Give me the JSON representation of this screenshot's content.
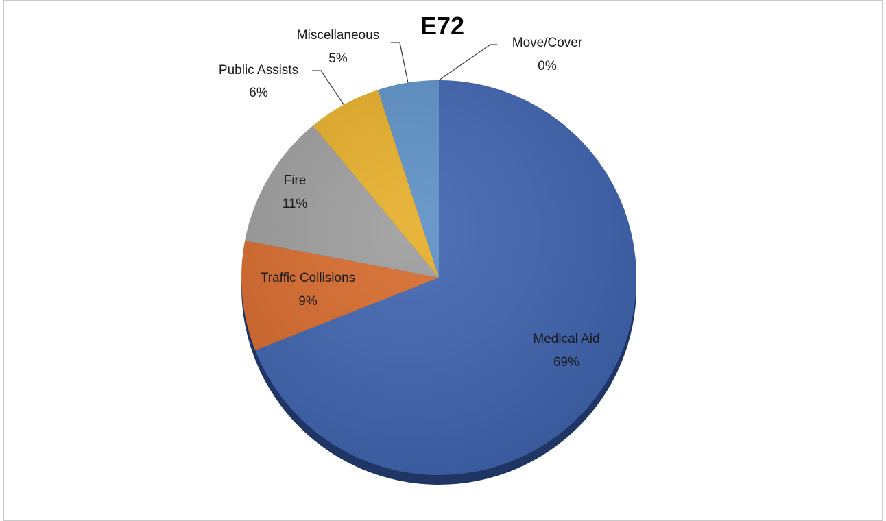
{
  "chart_data": {
    "type": "pie",
    "title": "E72",
    "slices": [
      {
        "label": "Medical Aid",
        "value_label": "69%",
        "value": 69,
        "color": "#3f63b0"
      },
      {
        "label": "Traffic Collisions",
        "value_label": "9%",
        "value": 9,
        "color": "#d6692a"
      },
      {
        "label": "Fire",
        "value_label": "11%",
        "value": 11,
        "color": "#9c9c9c"
      },
      {
        "label": "Public Assists",
        "value_label": "6%",
        "value": 6,
        "color": "#e6ad27"
      },
      {
        "label": "Miscellaneous",
        "value_label": "5%",
        "value": 5,
        "color": "#5b8fc6"
      },
      {
        "label": "Move/Cover",
        "value_label": "0%",
        "value": 0,
        "color": "#2e4a86"
      }
    ]
  }
}
